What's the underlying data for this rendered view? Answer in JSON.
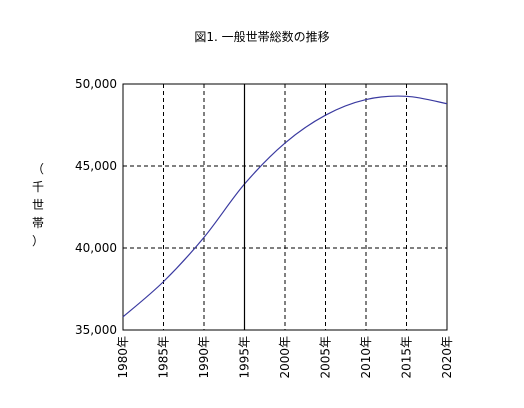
{
  "chart_data": {
    "type": "line",
    "title": "図1. 一般世帯総数の推移",
    "ylabel": "（千世帯）",
    "xlabel": "",
    "x": [
      1980,
      1985,
      1990,
      1995,
      2000,
      2005,
      2010,
      2015,
      2020
    ],
    "x_tick_labels": [
      "1980年",
      "1985年",
      "1990年",
      "1995年",
      "2000年",
      "2005年",
      "2010年",
      "2015年",
      "2020年"
    ],
    "y_tick_labels": [
      "35,000",
      "40,000",
      "45,000",
      "50,000"
    ],
    "ylim": [
      35000,
      50000
    ],
    "xlim": [
      1980,
      2020
    ],
    "grid": true,
    "series": [
      {
        "values": [
          35800,
          37950,
          40650,
          43900,
          46400,
          48100,
          49050,
          49250,
          48800
        ],
        "color": "#3a3aa0"
      }
    ],
    "marker_line_x": 1995
  }
}
